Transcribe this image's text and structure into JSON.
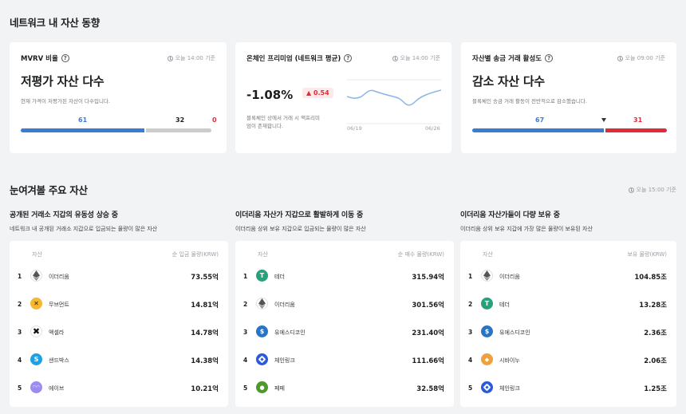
{
  "section1": {
    "title": "네트워크 내 자산 동향"
  },
  "mvrv": {
    "title": "MVRV 비율",
    "time": "오늘 14:00 기준",
    "headline": "저평가 자산 다수",
    "desc": "현재 가격이 저평가된 자산이 다수입니다.",
    "bars": [
      {
        "value": "61",
        "color": "#3a7bd5"
      },
      {
        "value": "32",
        "color": "#cccccc"
      },
      {
        "value": "0",
        "color": "#e02b3a"
      }
    ]
  },
  "premium": {
    "title": "온체인 프리미엄 (네트워크 평균)",
    "time": "오늘 14:00 기준",
    "value": "-1.08%",
    "change": "▲ 0.54",
    "desc_line1": "블록체인 상에서 거래 시 액프리미",
    "desc_line2": "엄이 존재합니다.",
    "x_start": "06/19",
    "x_end": "06/26"
  },
  "activity": {
    "title": "자산별 송금 거래 활성도",
    "time": "오늘 09:00 기준",
    "headline": "감소 자산 다수",
    "desc": "블록체인 송금 거래 활동이 전반적으로 감소했습니다.",
    "bars": [
      {
        "value": "67",
        "color": "#3a7bd5"
      },
      {
        "value": "31",
        "color": "#e02b3a"
      }
    ]
  },
  "section2": {
    "title": "눈여겨볼 주요 자산",
    "time": "오늘 15:00 기준"
  },
  "lists": [
    {
      "heading": "공개된 거래소 지갑의 유동성 상승 중",
      "desc": "네트워크 내 공개된 거래소 지갑으로 입금되는 물량이 많은 자산",
      "col_asset": "자산",
      "col_value": "순 입금 물량(KRW)",
      "rows": [
        {
          "rank": "1",
          "name": "이더리움",
          "value": "73.55억",
          "icon": "eth",
          "color": "#ffffff"
        },
        {
          "rank": "2",
          "name": "무브먼트",
          "value": "14.81억",
          "icon": "move",
          "color": "#f5b82e"
        },
        {
          "rank": "3",
          "name": "액셀라",
          "value": "14.78억",
          "icon": "axl",
          "color": "#ffffff"
        },
        {
          "rank": "4",
          "name": "샌드박스",
          "value": "14.38억",
          "icon": "sand",
          "color": "#1ea0e6"
        },
        {
          "rank": "5",
          "name": "에이브",
          "value": "10.21억",
          "icon": "aave",
          "color": "#9b8cf0"
        }
      ]
    },
    {
      "heading": "이더리움 자산가 지갑으로 활발하게 이동 중",
      "desc": "이더리움 상위 보유 지갑으로 입금되는 물량이 많은 자산",
      "col_asset": "자산",
      "col_value": "순 매수 물량(KRW)",
      "rows": [
        {
          "rank": "1",
          "name": "테더",
          "value": "315.94억",
          "icon": "usdt",
          "color": "#26a17b"
        },
        {
          "rank": "2",
          "name": "이더리움",
          "value": "301.56억",
          "icon": "eth",
          "color": "#ffffff"
        },
        {
          "rank": "3",
          "name": "유에스디코인",
          "value": "231.40억",
          "icon": "usdc",
          "color": "#2775ca"
        },
        {
          "rank": "4",
          "name": "체인링크",
          "value": "111.66억",
          "icon": "link",
          "color": "#2a5ada"
        },
        {
          "rank": "5",
          "name": "페페",
          "value": "32.58억",
          "icon": "pepe",
          "color": "#4c9a2a"
        }
      ]
    },
    {
      "heading": "이더리움 자산가들이 다량 보유 중",
      "desc": "이더리움 상위 보유 지갑에 가장 많은 물량이 보유된 자산",
      "col_asset": "자산",
      "col_value": "보유 물량(KRW)",
      "rows": [
        {
          "rank": "1",
          "name": "이더리움",
          "value": "104.85조",
          "icon": "eth",
          "color": "#ffffff"
        },
        {
          "rank": "2",
          "name": "테더",
          "value": "13.28조",
          "icon": "usdt",
          "color": "#26a17b"
        },
        {
          "rank": "3",
          "name": "유에스디코인",
          "value": "2.36조",
          "icon": "usdc",
          "color": "#2775ca"
        },
        {
          "rank": "4",
          "name": "시바이누",
          "value": "2.06조",
          "icon": "shib",
          "color": "#f0a03c"
        },
        {
          "rank": "5",
          "name": "체인링크",
          "value": "1.25조",
          "icon": "link",
          "color": "#2a5ada"
        }
      ]
    }
  ]
}
